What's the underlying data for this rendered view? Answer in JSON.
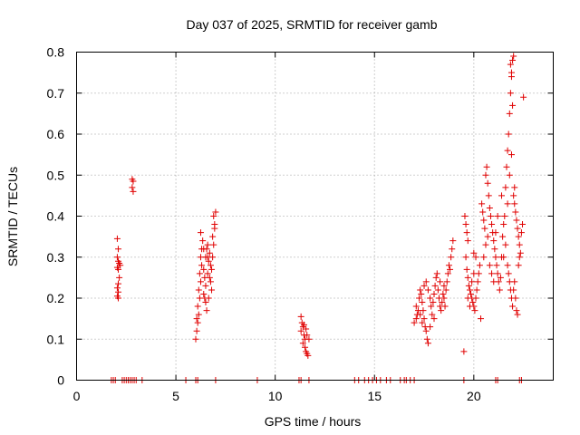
{
  "chart_data": {
    "type": "scatter",
    "title": "Day 037 of 2025, SRMTID for receiver gamb",
    "xlabel": "GPS time / hours",
    "ylabel": "SRMTID / TECUs",
    "xlim": [
      0,
      24
    ],
    "ylim": [
      0,
      0.8
    ],
    "xticks": [
      0,
      5,
      10,
      15,
      20
    ],
    "yticks": [
      0,
      0.1,
      0.2,
      0.3,
      0.4,
      0.5,
      0.6,
      0.7,
      0.8
    ],
    "xtick_labels": [
      "0",
      "5",
      "10",
      "15",
      "20"
    ],
    "ytick_labels": [
      "0",
      "0.1",
      "0.2",
      "0.3",
      "0.4",
      "0.5",
      "0.6",
      "0.7",
      "0.8"
    ],
    "grid": true,
    "marker": "+",
    "color": "#e00000",
    "series": [
      {
        "name": "SRMTID",
        "points": [
          [
            1.75,
            0
          ],
          [
            1.85,
            0
          ],
          [
            1.95,
            0
          ],
          [
            2.3,
            0
          ],
          [
            2.4,
            0
          ],
          [
            2.5,
            0
          ],
          [
            2.6,
            0
          ],
          [
            2.7,
            0
          ],
          [
            2.8,
            0
          ],
          [
            2.9,
            0
          ],
          [
            3.0,
            0
          ],
          [
            3.3,
            0
          ],
          [
            5.5,
            0
          ],
          [
            6.0,
            0
          ],
          [
            6.1,
            0
          ],
          [
            7.0,
            0
          ],
          [
            9.1,
            0
          ],
          [
            11.2,
            0
          ],
          [
            11.3,
            0
          ],
          [
            11.7,
            0
          ],
          [
            14.0,
            0
          ],
          [
            14.2,
            0
          ],
          [
            14.5,
            0
          ],
          [
            14.7,
            0
          ],
          [
            14.9,
            0
          ],
          [
            15.1,
            0
          ],
          [
            15.3,
            0
          ],
          [
            15.6,
            0
          ],
          [
            15.8,
            0
          ],
          [
            16.3,
            0
          ],
          [
            16.5,
            0
          ],
          [
            16.6,
            0
          ],
          [
            16.8,
            0
          ],
          [
            17.0,
            0
          ],
          [
            19.5,
            0
          ],
          [
            21.1,
            0
          ],
          [
            21.2,
            0
          ],
          [
            22.3,
            0
          ],
          [
            22.4,
            0
          ],
          [
            2.05,
            0.345
          ],
          [
            2.1,
            0.32
          ],
          [
            2.05,
            0.3
          ],
          [
            2.1,
            0.29
          ],
          [
            2.15,
            0.285
          ],
          [
            2.2,
            0.28
          ],
          [
            2.05,
            0.275
          ],
          [
            2.1,
            0.27
          ],
          [
            2.15,
            0.25
          ],
          [
            2.1,
            0.235
          ],
          [
            2.05,
            0.225
          ],
          [
            2.1,
            0.215
          ],
          [
            2.05,
            0.205
          ],
          [
            2.1,
            0.2
          ],
          [
            2.8,
            0.49
          ],
          [
            2.85,
            0.485
          ],
          [
            2.8,
            0.47
          ],
          [
            2.85,
            0.46
          ],
          [
            6.0,
            0.1
          ],
          [
            6.05,
            0.12
          ],
          [
            6.1,
            0.14
          ],
          [
            6.05,
            0.15
          ],
          [
            6.15,
            0.16
          ],
          [
            6.1,
            0.18
          ],
          [
            6.2,
            0.2
          ],
          [
            6.15,
            0.22
          ],
          [
            6.25,
            0.24
          ],
          [
            6.2,
            0.26
          ],
          [
            6.3,
            0.28
          ],
          [
            6.25,
            0.3
          ],
          [
            6.3,
            0.32
          ],
          [
            6.35,
            0.34
          ],
          [
            6.25,
            0.36
          ],
          [
            6.4,
            0.27
          ],
          [
            6.45,
            0.25
          ],
          [
            6.5,
            0.23
          ],
          [
            6.4,
            0.21
          ],
          [
            6.5,
            0.19
          ],
          [
            6.55,
            0.17
          ],
          [
            6.45,
            0.2
          ],
          [
            6.6,
            0.26
          ],
          [
            6.65,
            0.29
          ],
          [
            6.7,
            0.31
          ],
          [
            6.75,
            0.28
          ],
          [
            6.8,
            0.27
          ],
          [
            6.7,
            0.25
          ],
          [
            6.85,
            0.3
          ],
          [
            6.9,
            0.33
          ],
          [
            6.85,
            0.35
          ],
          [
            6.95,
            0.38
          ],
          [
            6.9,
            0.4
          ],
          [
            7.0,
            0.41
          ],
          [
            6.95,
            0.37
          ],
          [
            6.6,
            0.3
          ],
          [
            6.75,
            0.24
          ],
          [
            6.8,
            0.22
          ],
          [
            6.65,
            0.2
          ],
          [
            6.5,
            0.3
          ],
          [
            6.55,
            0.32
          ],
          [
            6.6,
            0.33
          ],
          [
            6.4,
            0.32
          ],
          [
            11.3,
            0.155
          ],
          [
            11.35,
            0.14
          ],
          [
            11.4,
            0.13
          ],
          [
            11.3,
            0.12
          ],
          [
            11.45,
            0.11
          ],
          [
            11.5,
            0.1
          ],
          [
            11.4,
            0.09
          ],
          [
            11.5,
            0.08
          ],
          [
            11.55,
            0.07
          ],
          [
            11.6,
            0.065
          ],
          [
            11.65,
            0.06
          ],
          [
            11.55,
            0.125
          ],
          [
            11.6,
            0.11
          ],
          [
            11.7,
            0.1
          ],
          [
            11.45,
            0.135
          ],
          [
            17.0,
            0.14
          ],
          [
            17.1,
            0.15
          ],
          [
            17.15,
            0.16
          ],
          [
            17.2,
            0.17
          ],
          [
            17.1,
            0.18
          ],
          [
            17.25,
            0.2
          ],
          [
            17.3,
            0.22
          ],
          [
            17.35,
            0.21
          ],
          [
            17.4,
            0.19
          ],
          [
            17.45,
            0.17
          ],
          [
            17.5,
            0.15
          ],
          [
            17.55,
            0.13
          ],
          [
            17.6,
            0.12
          ],
          [
            17.65,
            0.1
          ],
          [
            17.7,
            0.09
          ],
          [
            17.5,
            0.23
          ],
          [
            17.6,
            0.24
          ],
          [
            17.7,
            0.22
          ],
          [
            17.8,
            0.2
          ],
          [
            17.85,
            0.18
          ],
          [
            17.9,
            0.16
          ],
          [
            17.95,
            0.19
          ],
          [
            18.0,
            0.21
          ],
          [
            18.05,
            0.23
          ],
          [
            18.1,
            0.25
          ],
          [
            18.15,
            0.26
          ],
          [
            18.2,
            0.22
          ],
          [
            18.25,
            0.2
          ],
          [
            18.3,
            0.18
          ],
          [
            18.35,
            0.17
          ],
          [
            18.4,
            0.19
          ],
          [
            18.45,
            0.21
          ],
          [
            18.5,
            0.2
          ],
          [
            18.55,
            0.18
          ],
          [
            18.6,
            0.22
          ],
          [
            18.65,
            0.24
          ],
          [
            18.7,
            0.26
          ],
          [
            18.75,
            0.28
          ],
          [
            18.8,
            0.27
          ],
          [
            18.85,
            0.3
          ],
          [
            18.9,
            0.32
          ],
          [
            18.95,
            0.34
          ],
          [
            17.3,
            0.16
          ],
          [
            17.4,
            0.14
          ],
          [
            17.8,
            0.13
          ],
          [
            18.0,
            0.15
          ],
          [
            18.3,
            0.24
          ],
          [
            18.5,
            0.23
          ],
          [
            19.5,
            0.07
          ],
          [
            19.6,
            0.38
          ],
          [
            19.55,
            0.4
          ],
          [
            19.65,
            0.36
          ],
          [
            19.7,
            0.34
          ],
          [
            19.6,
            0.3
          ],
          [
            19.65,
            0.27
          ],
          [
            19.7,
            0.25
          ],
          [
            19.75,
            0.23
          ],
          [
            19.8,
            0.22
          ],
          [
            19.85,
            0.21
          ],
          [
            19.9,
            0.2
          ],
          [
            19.95,
            0.19
          ],
          [
            20.0,
            0.18
          ],
          [
            20.05,
            0.17
          ],
          [
            20.1,
            0.2
          ],
          [
            20.15,
            0.22
          ],
          [
            20.2,
            0.24
          ],
          [
            20.25,
            0.26
          ],
          [
            20.3,
            0.28
          ],
          [
            20.35,
            0.15
          ],
          [
            19.7,
            0.2
          ],
          [
            19.8,
            0.18
          ],
          [
            19.9,
            0.24
          ],
          [
            20.0,
            0.26
          ],
          [
            20.1,
            0.3
          ],
          [
            20.0,
            0.31
          ],
          [
            20.4,
            0.43
          ],
          [
            20.45,
            0.41
          ],
          [
            20.5,
            0.39
          ],
          [
            20.55,
            0.37
          ],
          [
            20.6,
            0.5
          ],
          [
            20.65,
            0.52
          ],
          [
            20.7,
            0.48
          ],
          [
            20.75,
            0.45
          ],
          [
            20.8,
            0.42
          ],
          [
            20.85,
            0.4
          ],
          [
            20.9,
            0.38
          ],
          [
            20.95,
            0.36
          ],
          [
            21.0,
            0.34
          ],
          [
            21.05,
            0.32
          ],
          [
            21.1,
            0.3
          ],
          [
            21.15,
            0.28
          ],
          [
            21.2,
            0.26
          ],
          [
            21.25,
            0.24
          ],
          [
            21.3,
            0.22
          ],
          [
            21.35,
            0.25
          ],
          [
            21.4,
            0.3
          ],
          [
            21.45,
            0.35
          ],
          [
            21.5,
            0.38
          ],
          [
            21.55,
            0.4
          ],
          [
            20.5,
            0.3
          ],
          [
            20.6,
            0.33
          ],
          [
            20.7,
            0.35
          ],
          [
            20.8,
            0.28
          ],
          [
            20.9,
            0.26
          ],
          [
            21.0,
            0.24
          ],
          [
            21.1,
            0.36
          ],
          [
            21.2,
            0.4
          ],
          [
            21.4,
            0.45
          ],
          [
            21.6,
            0.47
          ],
          [
            21.65,
            0.52
          ],
          [
            21.7,
            0.56
          ],
          [
            21.75,
            0.6
          ],
          [
            21.8,
            0.65
          ],
          [
            21.85,
            0.7
          ],
          [
            21.9,
            0.74
          ],
          [
            21.95,
            0.78
          ],
          [
            22.0,
            0.79
          ],
          [
            21.85,
            0.77
          ],
          [
            21.9,
            0.75
          ],
          [
            21.95,
            0.67
          ],
          [
            22.0,
            0.45
          ],
          [
            22.05,
            0.43
          ],
          [
            22.1,
            0.41
          ],
          [
            22.15,
            0.39
          ],
          [
            22.2,
            0.37
          ],
          [
            22.25,
            0.35
          ],
          [
            22.3,
            0.33
          ],
          [
            22.35,
            0.31
          ],
          [
            21.7,
            0.28
          ],
          [
            21.75,
            0.26
          ],
          [
            21.8,
            0.24
          ],
          [
            21.85,
            0.22
          ],
          [
            21.9,
            0.2
          ],
          [
            21.95,
            0.18
          ],
          [
            22.0,
            0.22
          ],
          [
            22.05,
            0.24
          ],
          [
            22.1,
            0.2
          ],
          [
            22.15,
            0.17
          ],
          [
            22.2,
            0.16
          ],
          [
            22.25,
            0.28
          ],
          [
            22.3,
            0.3
          ],
          [
            22.4,
            0.36
          ],
          [
            22.45,
            0.38
          ],
          [
            22.5,
            0.69
          ],
          [
            21.6,
            0.33
          ],
          [
            21.5,
            0.3
          ],
          [
            21.8,
            0.5
          ],
          [
            21.9,
            0.55
          ],
          [
            22.05,
            0.47
          ],
          [
            21.7,
            0.43
          ]
        ]
      }
    ]
  }
}
